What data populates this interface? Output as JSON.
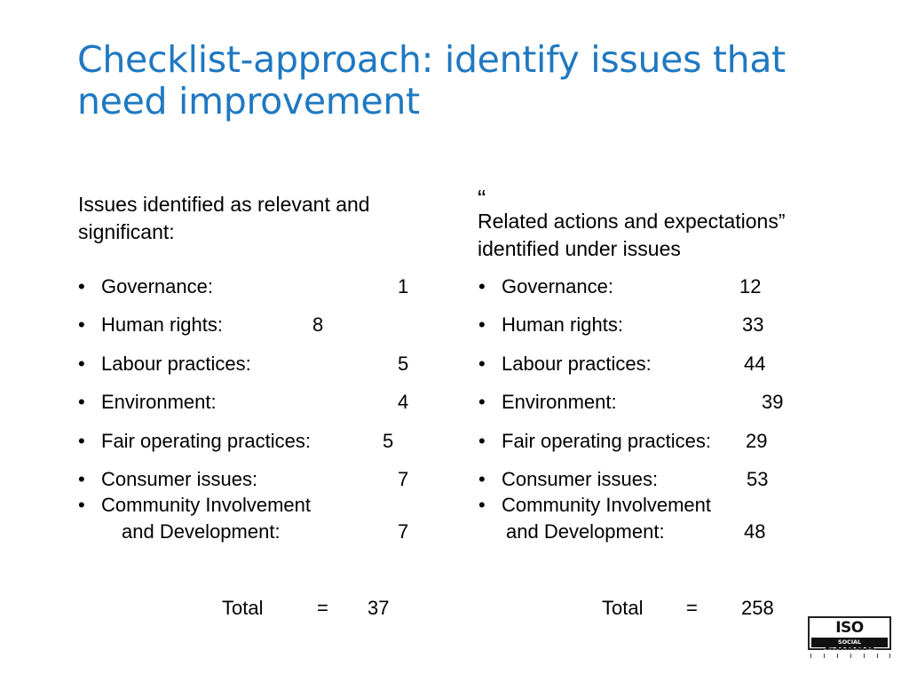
{
  "title": {
    "line1": "Checklist-approach: identify issues that",
    "line2": "need improvement"
  },
  "left": {
    "heading_line1": "Issues identified as relevant and",
    "heading_line2": "significant:",
    "items": [
      {
        "label": "Governance:",
        "value": "1"
      },
      {
        "label": "Human rights:",
        "value": "8"
      },
      {
        "label": "Labour practices:",
        "value": "5"
      },
      {
        "label": "Environment:",
        "value": "4"
      },
      {
        "label": "Fair operating practices:",
        "value": "5"
      },
      {
        "label": "Consumer issues:",
        "value": "7"
      },
      {
        "label": "Community Involvement",
        "label2": "and Development:",
        "value": "7"
      }
    ],
    "total_label": "Total",
    "equals": "=",
    "total_value": "37"
  },
  "right": {
    "open_quote": "“",
    "heading_line1": "Related actions and expectations”",
    "heading_line2": "identified under issues",
    "items": [
      {
        "label": "Governance:",
        "value": "12"
      },
      {
        "label": "Human rights:",
        "value": "33"
      },
      {
        "label": "Labour practices:",
        "value": "44"
      },
      {
        "label": "Environment:",
        "value": "39"
      },
      {
        "label": "Fair operating practices:",
        "value": "29"
      },
      {
        "label": "Consumer issues:",
        "value": "53"
      },
      {
        "label": "Community Involvement",
        "label2": "and Development:",
        "value": "48"
      }
    ],
    "total_label": "Total",
    "equals": "=",
    "total_value": "258"
  },
  "bullet": "•",
  "logo": {
    "main": "ISO 26000",
    "sub": "SOCIAL RESPONSIBILITY"
  }
}
